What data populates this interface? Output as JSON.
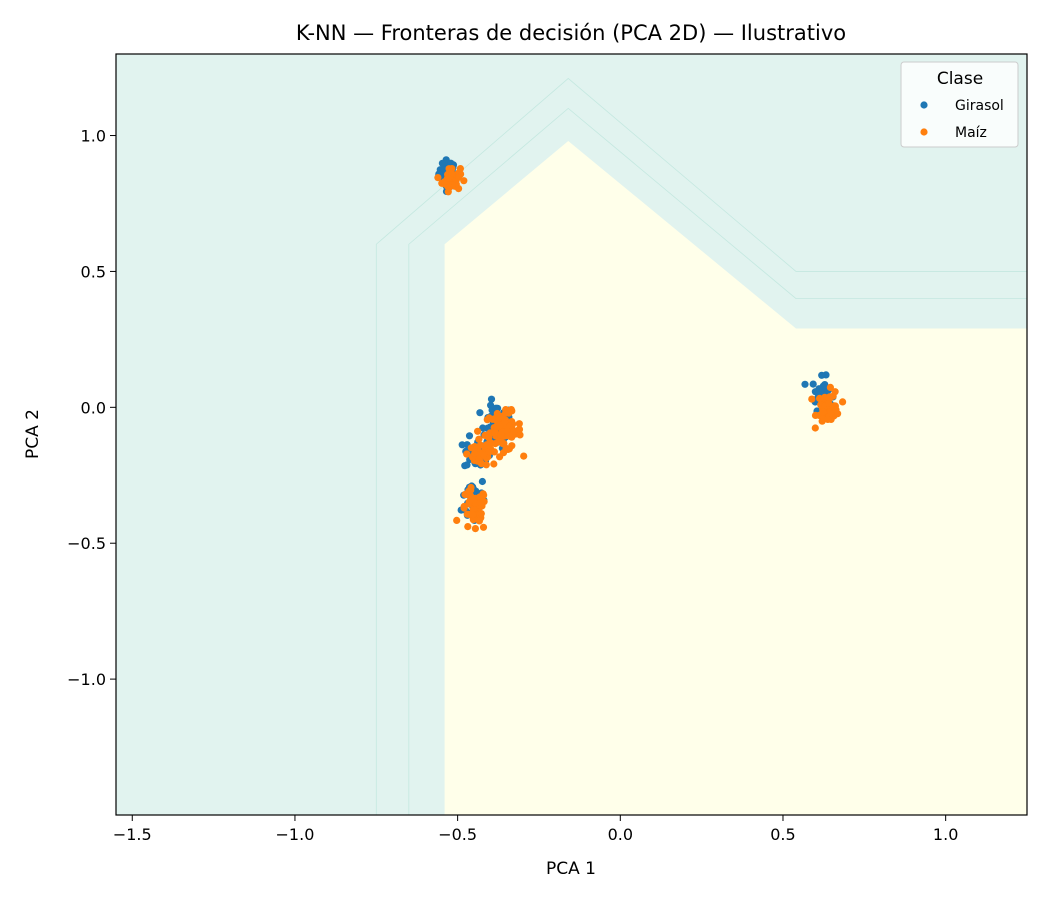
{
  "chart_data": {
    "type": "scatter",
    "title": "K-NN — Fronteras de decisión (PCA 2D) — Ilustrativo",
    "xlabel": "PCA 1",
    "ylabel": "PCA 2",
    "xlim": [
      -1.55,
      1.25
    ],
    "ylim": [
      -1.5,
      1.3
    ],
    "x_ticks": [
      -1.5,
      -1.0,
      -0.5,
      0.0,
      0.5,
      1.0
    ],
    "x_tick_labels": [
      "−1.5",
      "−1.0",
      "−0.5",
      "0.0",
      "0.5",
      "1.0"
    ],
    "y_ticks": [
      -1.0,
      -0.5,
      0.0,
      0.5,
      1.0
    ],
    "y_tick_labels": [
      "−1.0",
      "−0.5",
      "0.0",
      "0.5",
      "1.0"
    ],
    "grid": false,
    "background_regions": [
      {
        "label": "Girasol",
        "color": "#e1f3ef"
      },
      {
        "label": "Maíz",
        "color": "#ffffea"
      }
    ],
    "decision_boundary": [
      [
        -0.54,
        -1.5
      ],
      [
        -0.54,
        0.6
      ],
      [
        -0.16,
        0.98
      ],
      [
        0.54,
        0.29
      ],
      [
        1.25,
        0.29
      ]
    ],
    "contour_lines": [
      [
        [
          -0.65,
          -1.5
        ],
        [
          -0.65,
          0.6
        ],
        [
          -0.16,
          1.1
        ],
        [
          0.54,
          0.4
        ],
        [
          1.25,
          0.4
        ]
      ],
      [
        [
          -0.75,
          -1.5
        ],
        [
          -0.75,
          0.6
        ],
        [
          -0.16,
          1.21
        ],
        [
          0.54,
          0.5
        ],
        [
          1.25,
          0.5
        ]
      ]
    ],
    "legend": {
      "title": "Clase",
      "placement": "top-right",
      "entries": [
        "Girasol",
        "Maíz"
      ]
    },
    "series": [
      {
        "name": "Girasol",
        "color": "#1f77b4",
        "clusters": [
          {
            "center": [
              -0.53,
              0.86
            ],
            "spread": [
              0.014,
              0.025
            ],
            "count": 40
          },
          {
            "center": [
              -0.38,
              -0.07
            ],
            "spread": [
              0.025,
              0.04
            ],
            "count": 55
          },
          {
            "center": [
              -0.44,
              -0.17
            ],
            "spread": [
              0.02,
              0.03
            ],
            "count": 35
          },
          {
            "center": [
              -0.45,
              -0.34
            ],
            "spread": [
              0.018,
              0.045
            ],
            "count": 45
          },
          {
            "center": [
              0.62,
              0.05
            ],
            "spread": [
              0.015,
              0.03
            ],
            "count": 35
          }
        ]
      },
      {
        "name": "Maíz",
        "color": "#ff7f0e",
        "clusters": [
          {
            "center": [
              -0.52,
              0.84
            ],
            "spread": [
              0.014,
              0.022
            ],
            "count": 45
          },
          {
            "center": [
              -0.36,
              -0.09
            ],
            "spread": [
              0.028,
              0.035
            ],
            "count": 90
          },
          {
            "center": [
              -0.43,
              -0.17
            ],
            "spread": [
              0.02,
              0.025
            ],
            "count": 40
          },
          {
            "center": [
              -0.45,
              -0.38
            ],
            "spread": [
              0.02,
              0.04
            ],
            "count": 50
          },
          {
            "center": [
              0.64,
              0.0
            ],
            "spread": [
              0.018,
              0.03
            ],
            "count": 45
          }
        ]
      }
    ]
  }
}
